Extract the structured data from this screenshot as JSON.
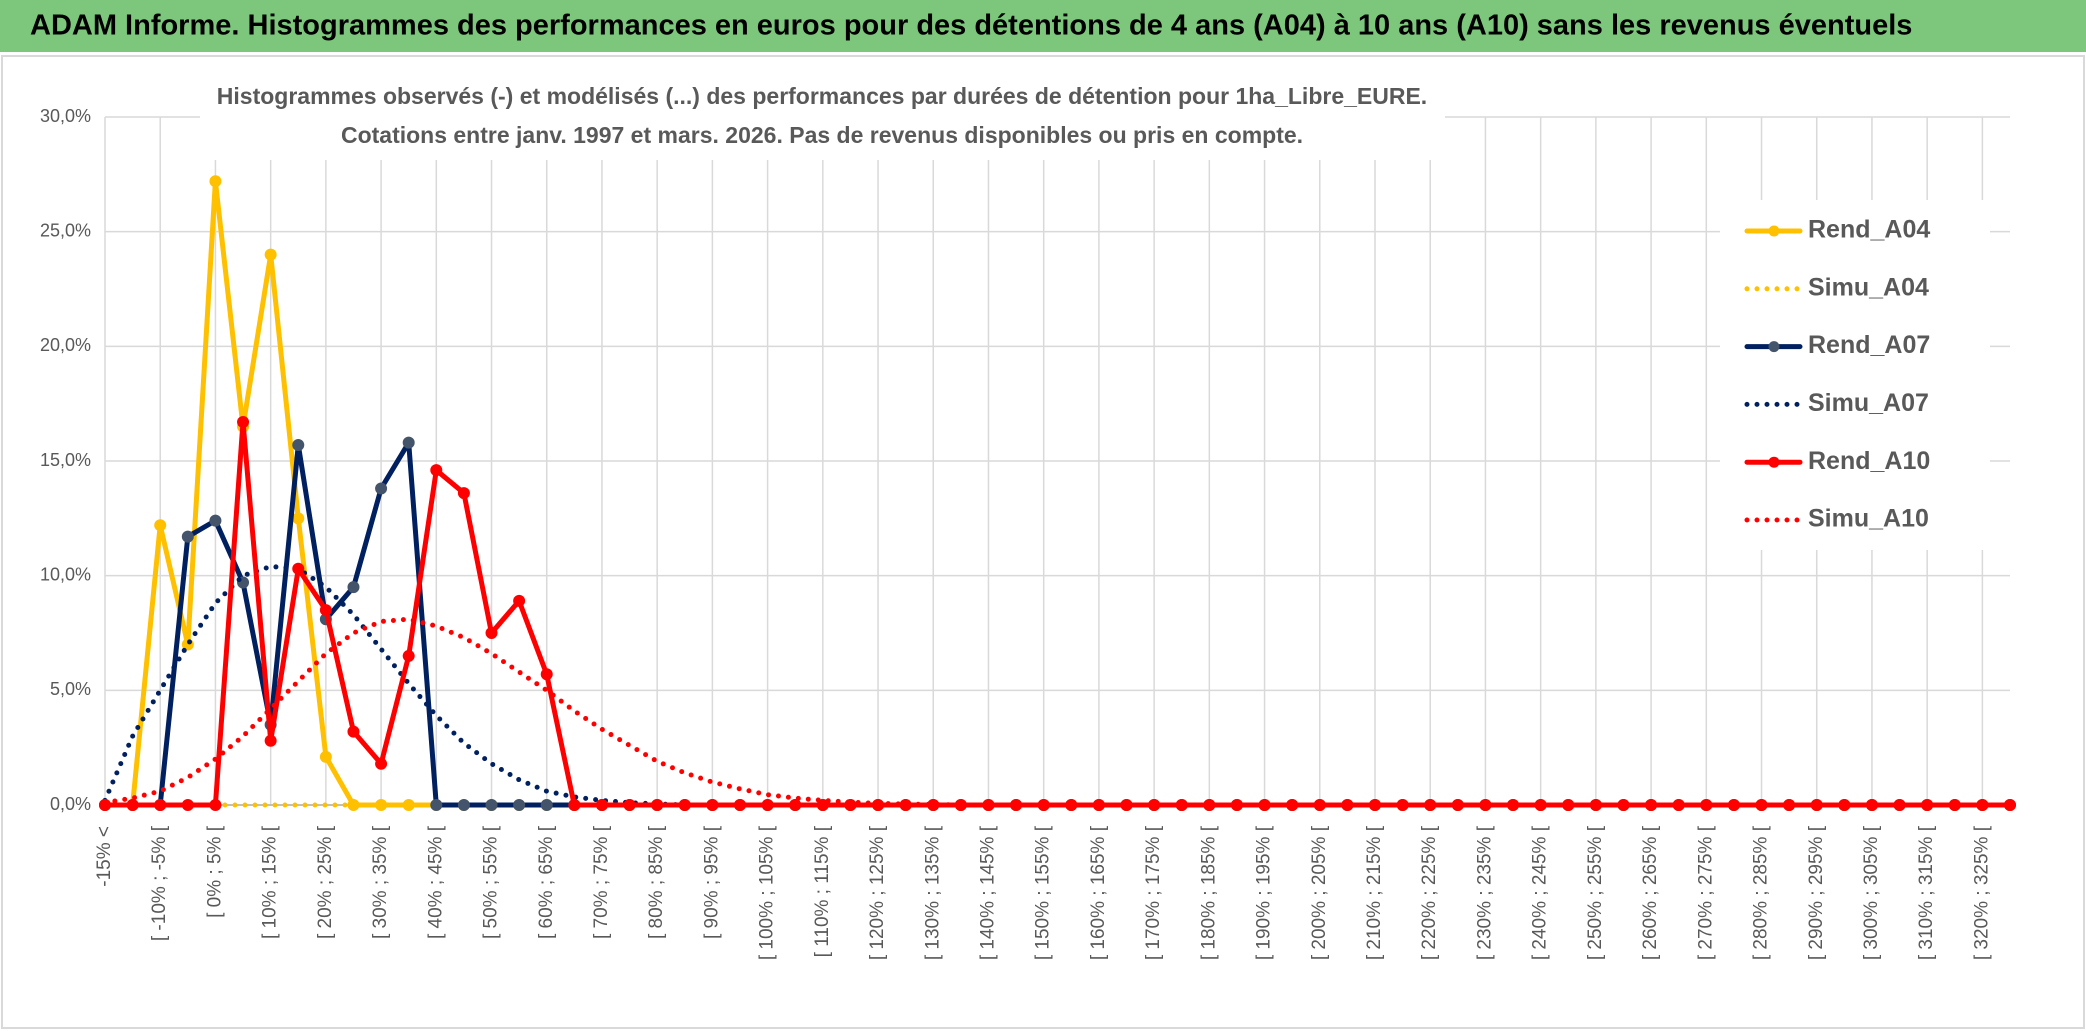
{
  "header": {
    "title": "ADAM Informe. Histogrammes des performances en euros pour des détentions de 4 ans (A04) à 10 ans (A10) sans les revenus éventuels"
  },
  "chart_data": {
    "type": "line",
    "title": "Histogrammes observés (-) et modélisés (...) des performances par durées de détention pour 1ha_Libre_EURE.",
    "subtitle": "Cotations entre janv. 1997 et mars. 2026. Pas de revenus disponibles ou pris en compte.",
    "categories": [
      "-15% <",
      null,
      "[ -10% ; -5% [",
      null,
      "[ 0% ; 5% [",
      null,
      "[ 10% ; 15% [",
      null,
      "[ 20% ; 25% [",
      null,
      "[ 30% ; 35% [",
      null,
      "[ 40% ; 45% [",
      null,
      "[ 50% ; 55% [",
      null,
      "[ 60% ; 65% [",
      null,
      "[ 70% ; 75% [",
      null,
      "[ 80% ; 85% [",
      null,
      "[ 90% ; 95% [",
      null,
      "[ 100% ; 105% [",
      null,
      "[ 110% ; 115% [",
      null,
      "[ 120% ; 125% [",
      null,
      "[ 130% ; 135% [",
      null,
      "[ 140% ; 145% [",
      null,
      "[ 150% ; 155% [",
      null,
      "[ 160% ; 165% [",
      null,
      "[ 170% ; 175% [",
      null,
      "[ 180% ; 185% [",
      null,
      "[ 190% ; 195% [",
      null,
      "[ 200% ; 205% [",
      null,
      "[ 210% ; 215% [",
      null,
      "[ 220% ; 225% [",
      null,
      "[ 230% ; 235% [",
      null,
      "[ 240% ; 245% [",
      null,
      "[ 250% ; 255% [",
      null,
      "[ 260% ; 265% [",
      null,
      "[ 270% ; 275% [",
      null,
      "[ 280% ; 285% [",
      null,
      "[ 290% ; 295% [",
      null,
      "[ 300% ; 305% [",
      null,
      "[ 310% ; 315% [",
      null,
      "[ 320% ; 325% [",
      null
    ],
    "series": [
      {
        "name": "Rend_A04",
        "color": "#FFC000",
        "style": "solid",
        "marker": true,
        "marker_color": "#FFC000",
        "values": [
          0,
          0,
          12.2,
          7,
          27.2,
          16.5,
          24,
          12.5,
          2.1,
          0,
          0,
          0,
          0,
          0,
          0,
          0,
          0,
          0,
          0,
          0,
          0,
          0,
          0,
          0,
          0,
          0,
          0,
          0,
          0,
          0,
          0,
          0,
          0,
          0,
          0,
          0,
          0,
          0,
          0,
          0,
          0,
          0,
          0,
          0,
          0,
          0,
          0,
          0,
          0,
          0,
          0,
          0,
          0,
          0,
          0,
          0,
          0,
          0,
          0,
          0,
          0,
          0,
          0,
          0,
          0,
          0,
          0,
          0,
          0,
          0
        ]
      },
      {
        "name": "Simu_A04",
        "color": "#FFC000",
        "style": "dotted",
        "marker": false,
        "values": [
          0,
          0,
          0,
          0,
          0,
          0,
          0,
          0,
          0,
          0,
          0,
          0,
          0,
          0,
          0,
          0,
          0,
          0,
          0,
          0,
          0,
          0,
          0,
          0,
          0,
          0,
          0,
          0,
          0,
          0,
          0,
          0,
          0,
          0,
          0,
          0,
          0,
          0,
          0,
          0,
          0,
          0,
          0,
          0,
          0,
          0,
          0,
          0,
          0,
          0,
          0,
          0,
          0,
          0,
          0,
          0,
          0,
          0,
          0,
          0,
          0,
          0,
          0,
          0,
          0,
          0,
          0,
          0,
          0,
          0
        ]
      },
      {
        "name": "Rend_A07",
        "color": "#002060",
        "style": "solid",
        "marker": true,
        "marker_color": "#44546A",
        "values": [
          0,
          0,
          0,
          11.7,
          12.4,
          9.7,
          3.5,
          15.7,
          8.1,
          9.5,
          13.8,
          15.8,
          0,
          0,
          0,
          0,
          0,
          0,
          0,
          0,
          0,
          0,
          0,
          0,
          0,
          0,
          0,
          0,
          0,
          0,
          0,
          0,
          0,
          0,
          0,
          0,
          0,
          0,
          0,
          0,
          0,
          0,
          0,
          0,
          0,
          0,
          0,
          0,
          0,
          0,
          0,
          0,
          0,
          0,
          0,
          0,
          0,
          0,
          0,
          0,
          0,
          0,
          0,
          0,
          0,
          0,
          0,
          0,
          0,
          0
        ]
      },
      {
        "name": "Simu_A07",
        "color": "#002060",
        "style": "dotted",
        "marker": false,
        "values": [
          0.2,
          3,
          5,
          7,
          8.8,
          10,
          10.4,
          10.3,
          9.5,
          8.3,
          6.8,
          5.3,
          3.9,
          2.7,
          1.8,
          1.1,
          0.6,
          0.35,
          0.2,
          0.1,
          0.05,
          0,
          0,
          0,
          0,
          0,
          0,
          0,
          0,
          0,
          0,
          0,
          0,
          0,
          0,
          0,
          0,
          0,
          0,
          0,
          0,
          0,
          0,
          0,
          0,
          0,
          0,
          0,
          0,
          0,
          0,
          0,
          0,
          0,
          0,
          0,
          0,
          0,
          0,
          0,
          0,
          0,
          0,
          0,
          0,
          0,
          0,
          0,
          0,
          0
        ]
      },
      {
        "name": "Rend_A10",
        "color": "#FF0000",
        "style": "solid",
        "marker": true,
        "marker_color": "#FF0000",
        "values": [
          0,
          0,
          0,
          0,
          0,
          16.7,
          2.8,
          10.3,
          8.5,
          3.2,
          1.8,
          6.5,
          14.6,
          13.6,
          7.5,
          8.9,
          5.7,
          0,
          0,
          0,
          0,
          0,
          0,
          0,
          0,
          0,
          0,
          0,
          0,
          0,
          0,
          0,
          0,
          0,
          0,
          0,
          0,
          0,
          0,
          0,
          0,
          0,
          0,
          0,
          0,
          0,
          0,
          0,
          0,
          0,
          0,
          0,
          0,
          0,
          0,
          0,
          0,
          0,
          0,
          0,
          0,
          0,
          0,
          0,
          0,
          0,
          0,
          0,
          0,
          0
        ]
      },
      {
        "name": "Simu_A10",
        "color": "#FF0000",
        "style": "dotted",
        "marker": false,
        "values": [
          0.1,
          0.3,
          0.6,
          1.2,
          2,
          3,
          4.2,
          5.4,
          6.6,
          7.5,
          8,
          8.1,
          7.8,
          7.3,
          6.6,
          5.8,
          5,
          4.1,
          3.3,
          2.6,
          1.9,
          1.4,
          1,
          0.7,
          0.45,
          0.3,
          0.2,
          0.12,
          0.07,
          0.04,
          0.02,
          0,
          0,
          0,
          0,
          0,
          0,
          0,
          0,
          0,
          0,
          0,
          0,
          0,
          0,
          0,
          0,
          0,
          0,
          0,
          0,
          0,
          0,
          0,
          0,
          0,
          0,
          0,
          0,
          0,
          0,
          0,
          0,
          0,
          0,
          0,
          0,
          0,
          0,
          0
        ]
      }
    ],
    "ylim": [
      0,
      30
    ],
    "yticks": [
      {
        "value": 0,
        "label": "0,0%"
      },
      {
        "value": 5,
        "label": "5,0%"
      },
      {
        "value": 10,
        "label": "10,0%"
      },
      {
        "value": 15,
        "label": "15,0%"
      },
      {
        "value": 20,
        "label": "20,0%"
      },
      {
        "value": 25,
        "label": "25,0%"
      },
      {
        "value": 30,
        "label": "30,0%"
      }
    ],
    "grid": true,
    "legend": "right"
  }
}
